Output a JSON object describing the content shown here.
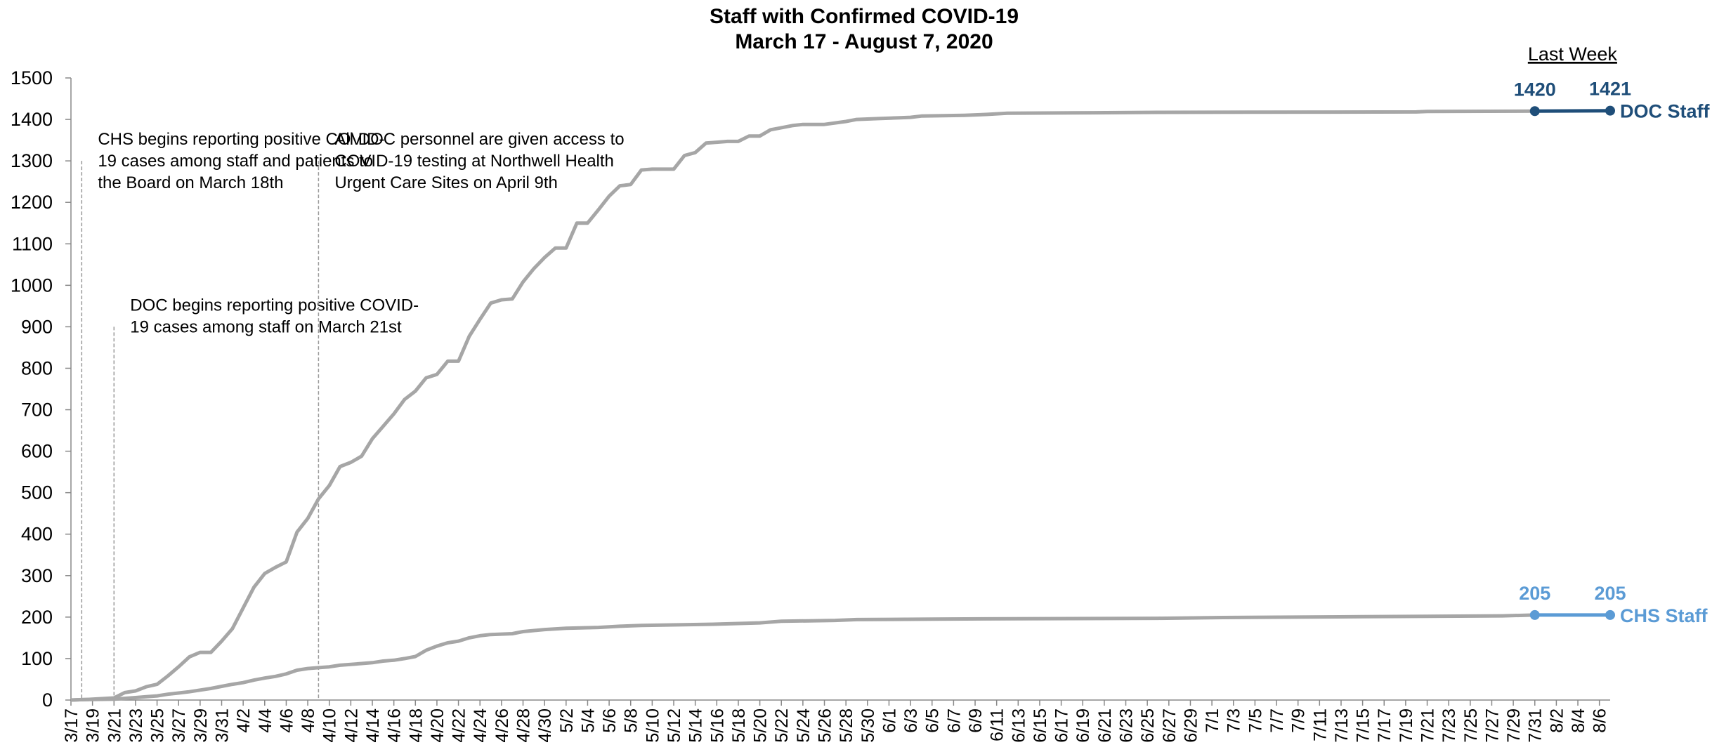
{
  "chart_data": {
    "type": "line",
    "title": "Staff with Confirmed COVID-19",
    "subtitle": "March 17 - August 7, 2020",
    "xlabel": "",
    "ylabel": "",
    "ylim": [
      0,
      1500
    ],
    "yticks": [
      0,
      100,
      200,
      300,
      400,
      500,
      600,
      700,
      800,
      900,
      1000,
      1100,
      1200,
      1300,
      1400,
      1500
    ],
    "x_tick_labels": [
      "3/17",
      "3/19",
      "3/21",
      "3/23",
      "3/25",
      "3/27",
      "3/29",
      "3/31",
      "4/2",
      "4/4",
      "4/6",
      "4/8",
      "4/10",
      "4/12",
      "4/14",
      "4/16",
      "4/18",
      "4/20",
      "4/22",
      "4/24",
      "4/26",
      "4/28",
      "4/30",
      "5/2",
      "5/4",
      "5/6",
      "5/8",
      "5/10",
      "5/12",
      "5/14",
      "5/16",
      "5/18",
      "5/20",
      "5/22",
      "5/24",
      "5/26",
      "5/28",
      "5/30",
      "6/1",
      "6/3",
      "6/5",
      "6/7",
      "6/9",
      "6/11",
      "6/13",
      "6/15",
      "6/17",
      "6/19",
      "6/21",
      "6/23",
      "6/25",
      "6/27",
      "6/29",
      "7/1",
      "7/3",
      "7/5",
      "7/7",
      "7/9",
      "7/11",
      "7/13",
      "7/15",
      "7/17",
      "7/19",
      "7/21",
      "7/23",
      "7/25",
      "7/27",
      "7/29",
      "7/31",
      "8/2",
      "8/4",
      "8/6"
    ],
    "grid": false,
    "legend": "inline labels at right end of each series",
    "last_week_label": "Last Week",
    "series": [
      {
        "name": "DOC Staff",
        "color": "#1F4E79",
        "history_color": "#A6A6A6",
        "last_week_values": [
          "1420",
          "1421"
        ],
        "points": [
          [
            "3/17",
            0
          ],
          [
            "3/19",
            2
          ],
          [
            "3/21",
            5
          ],
          [
            "3/22",
            18
          ],
          [
            "3/23",
            22
          ],
          [
            "3/24",
            32
          ],
          [
            "3/25",
            38
          ],
          [
            "3/26",
            58
          ],
          [
            "3/27",
            80
          ],
          [
            "3/28",
            104
          ],
          [
            "3/29",
            115
          ],
          [
            "3/30",
            115
          ],
          [
            "3/31",
            142
          ],
          [
            "4/1",
            172
          ],
          [
            "4/2",
            222
          ],
          [
            "4/3",
            272
          ],
          [
            "4/4",
            305
          ],
          [
            "4/5",
            320
          ],
          [
            "4/6",
            333
          ],
          [
            "4/7",
            405
          ],
          [
            "4/8",
            438
          ],
          [
            "4/9",
            485
          ],
          [
            "4/10",
            517
          ],
          [
            "4/11",
            563
          ],
          [
            "4/12",
            573
          ],
          [
            "4/13",
            588
          ],
          [
            "4/14",
            630
          ],
          [
            "4/15",
            660
          ],
          [
            "4/16",
            690
          ],
          [
            "4/17",
            725
          ],
          [
            "4/18",
            745
          ],
          [
            "4/19",
            777
          ],
          [
            "4/20",
            785
          ],
          [
            "4/21",
            817
          ],
          [
            "4/22",
            817
          ],
          [
            "4/23",
            877
          ],
          [
            "4/24",
            918
          ],
          [
            "4/25",
            957
          ],
          [
            "4/26",
            965
          ],
          [
            "4/27",
            967
          ],
          [
            "4/28",
            1008
          ],
          [
            "4/29",
            1040
          ],
          [
            "4/30",
            1067
          ],
          [
            "5/1",
            1090
          ],
          [
            "5/2",
            1090
          ],
          [
            "5/3",
            1150
          ],
          [
            "5/4",
            1150
          ],
          [
            "5/5",
            1182
          ],
          [
            "5/6",
            1215
          ],
          [
            "5/7",
            1240
          ],
          [
            "5/8",
            1243
          ],
          [
            "5/9",
            1278
          ],
          [
            "5/10",
            1280
          ],
          [
            "5/11",
            1280
          ],
          [
            "5/12",
            1280
          ],
          [
            "5/13",
            1313
          ],
          [
            "5/14",
            1320
          ],
          [
            "5/15",
            1343
          ],
          [
            "5/16",
            1345
          ],
          [
            "5/17",
            1347
          ],
          [
            "5/18",
            1347
          ],
          [
            "5/19",
            1360
          ],
          [
            "5/20",
            1360
          ],
          [
            "5/21",
            1375
          ],
          [
            "5/22",
            1380
          ],
          [
            "5/23",
            1385
          ],
          [
            "5/24",
            1388
          ],
          [
            "5/26",
            1388
          ],
          [
            "5/28",
            1395
          ],
          [
            "5/29",
            1400
          ],
          [
            "5/31",
            1402
          ],
          [
            "6/2",
            1404
          ],
          [
            "6/3",
            1405
          ],
          [
            "6/4",
            1408
          ],
          [
            "6/8",
            1410
          ],
          [
            "6/10",
            1412
          ],
          [
            "6/12",
            1415
          ],
          [
            "6/20",
            1416
          ],
          [
            "6/26",
            1417
          ],
          [
            "7/20",
            1418
          ],
          [
            "7/21",
            1419
          ],
          [
            "7/31",
            1420
          ],
          [
            "8/7",
            1421
          ]
        ]
      },
      {
        "name": "CHS Staff",
        "color": "#5B9BD5",
        "history_color": "#A6A6A6",
        "last_week_values": [
          "205",
          "205"
        ],
        "points": [
          [
            "3/17",
            0
          ],
          [
            "3/18",
            1
          ],
          [
            "3/21",
            2
          ],
          [
            "3/22",
            4
          ],
          [
            "3/23",
            6
          ],
          [
            "3/24",
            8
          ],
          [
            "3/25",
            10
          ],
          [
            "3/26",
            14
          ],
          [
            "3/27",
            17
          ],
          [
            "3/28",
            20
          ],
          [
            "3/29",
            24
          ],
          [
            "3/30",
            28
          ],
          [
            "3/31",
            33
          ],
          [
            "4/1",
            38
          ],
          [
            "4/2",
            42
          ],
          [
            "4/3",
            48
          ],
          [
            "4/4",
            53
          ],
          [
            "4/5",
            57
          ],
          [
            "4/6",
            63
          ],
          [
            "4/7",
            72
          ],
          [
            "4/8",
            76
          ],
          [
            "4/9",
            78
          ],
          [
            "4/10",
            80
          ],
          [
            "4/11",
            84
          ],
          [
            "4/12",
            86
          ],
          [
            "4/13",
            88
          ],
          [
            "4/14",
            90
          ],
          [
            "4/15",
            94
          ],
          [
            "4/16",
            96
          ],
          [
            "4/17",
            100
          ],
          [
            "4/18",
            105
          ],
          [
            "4/19",
            120
          ],
          [
            "4/20",
            130
          ],
          [
            "4/21",
            138
          ],
          [
            "4/22",
            142
          ],
          [
            "4/23",
            150
          ],
          [
            "4/24",
            155
          ],
          [
            "4/25",
            158
          ],
          [
            "4/27",
            160
          ],
          [
            "4/28",
            165
          ],
          [
            "4/30",
            170
          ],
          [
            "5/2",
            173
          ],
          [
            "5/5",
            175
          ],
          [
            "5/7",
            178
          ],
          [
            "5/9",
            180
          ],
          [
            "5/16",
            183
          ],
          [
            "5/20",
            186
          ],
          [
            "5/22",
            190
          ],
          [
            "5/27",
            192
          ],
          [
            "5/29",
            194
          ],
          [
            "6/5",
            195
          ],
          [
            "6/12",
            196
          ],
          [
            "6/26",
            197
          ],
          [
            "7/2",
            199
          ],
          [
            "7/15",
            201
          ],
          [
            "7/28",
            203
          ],
          [
            "7/31",
            205
          ],
          [
            "8/7",
            205
          ]
        ]
      }
    ],
    "annotations": [
      {
        "date": "3/18",
        "y_top": 1300,
        "lines": [
          "CHS begins reporting positive COVID-",
          "19 cases among staff and patients to",
          "the Board on March 18th"
        ]
      },
      {
        "date": "3/21",
        "y_top": 900,
        "lines": [
          "DOC begins reporting positive COVID-",
          "19 cases among staff on March 21st"
        ]
      },
      {
        "date": "4/9",
        "y_top": 1300,
        "lines": [
          "All DOC personnel are given access to",
          "COVID-19 testing at Northwell Health",
          "Urgent Care Sites on April 9th"
        ]
      }
    ]
  }
}
